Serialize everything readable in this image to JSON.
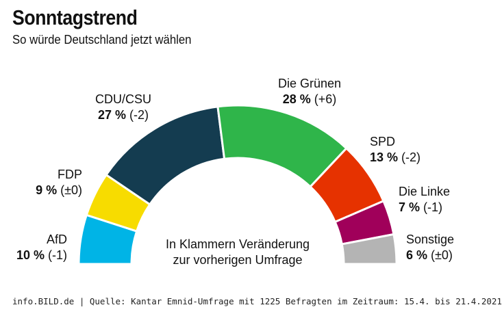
{
  "header": {
    "title": "Sonntagstrend",
    "subtitle": "So würde Deutschland jetzt wählen"
  },
  "chart_data": {
    "type": "pie",
    "variant": "half-donut",
    "unit": "%",
    "slices": [
      {
        "name": "AfD",
        "value": 10,
        "change": "(-1)",
        "color": "#00b4e6"
      },
      {
        "name": "FDP",
        "value": 9,
        "change": "(±0)",
        "color": "#f7dc00"
      },
      {
        "name": "CDU/CSU",
        "value": 27,
        "change": "(-2)",
        "color": "#143c50"
      },
      {
        "name": "Die Grünen",
        "value": 28,
        "change": "(+6)",
        "color": "#2fb54a"
      },
      {
        "name": "SPD",
        "value": 13,
        "change": "(-2)",
        "color": "#e63200"
      },
      {
        "name": "Die Linke",
        "value": 7,
        "change": "(-1)",
        "color": "#a0005a"
      },
      {
        "name": "Sonstige",
        "value": 6,
        "change": "(±0)",
        "color": "#b4b4b4"
      }
    ],
    "center_note": [
      "In Klammern Veränderung",
      "zur vorherigen Umfrage"
    ]
  },
  "footer": {
    "source": "info.BILD.de | Quelle: Kantar Emnid-Umfrage mit 1225 Befragten im Zeitraum: 15.4. bis 21.4.2021"
  }
}
